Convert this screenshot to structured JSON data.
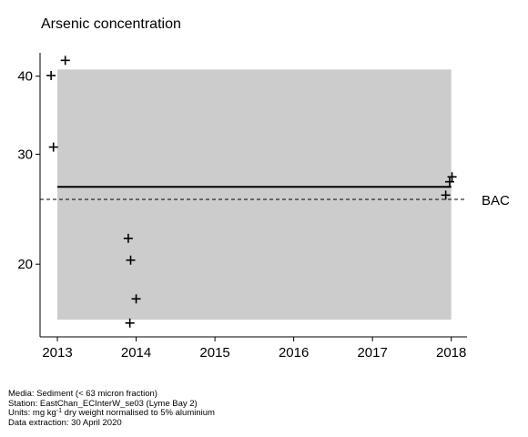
{
  "chart_data": {
    "type": "scatter",
    "title": "Arsenic concentration",
    "xlabel": "",
    "ylabel": "",
    "x_ticks": [
      2013,
      2014,
      2015,
      2016,
      2017,
      2018
    ],
    "y_ticks": [
      20,
      30,
      40
    ],
    "xlim": [
      2012.78,
      2018.2
    ],
    "ylim": [
      15.3,
      43.6
    ],
    "y_scale": "log",
    "grid": false,
    "points": [
      {
        "x": 2012.92,
        "y": 40.1
      },
      {
        "x": 2012.95,
        "y": 30.8
      },
      {
        "x": 2013.1,
        "y": 42.4
      },
      {
        "x": 2013.9,
        "y": 22.0
      },
      {
        "x": 2013.93,
        "y": 20.3
      },
      {
        "x": 2013.92,
        "y": 16.1
      },
      {
        "x": 2014.0,
        "y": 17.6
      },
      {
        "x": 2017.93,
        "y": 25.8
      },
      {
        "x": 2017.98,
        "y": 27.1
      },
      {
        "x": 2018.01,
        "y": 27.6
      }
    ],
    "shaded_region": {
      "x": [
        2013.0,
        2018.0
      ],
      "y": [
        16.3,
        41.0
      ],
      "color": "#cccccc"
    },
    "trend_line": {
      "x": [
        2013.0,
        2018.0
      ],
      "y": [
        26.6,
        26.6
      ]
    },
    "reference_line": {
      "label": "BAC",
      "value": 25.4,
      "style": "dashed"
    }
  },
  "footer": {
    "media": "Media: Sediment (< 63 micron fraction)",
    "station": "Station: EastChan_ECInterW_se03 (Lyme Bay 2)",
    "units_prefix": "Units:  mg kg",
    "units_sup": "-1",
    "units_suffix": " dry weight normalised to 5% aluminium",
    "extraction": "Data extraction: 30 April 2020"
  }
}
